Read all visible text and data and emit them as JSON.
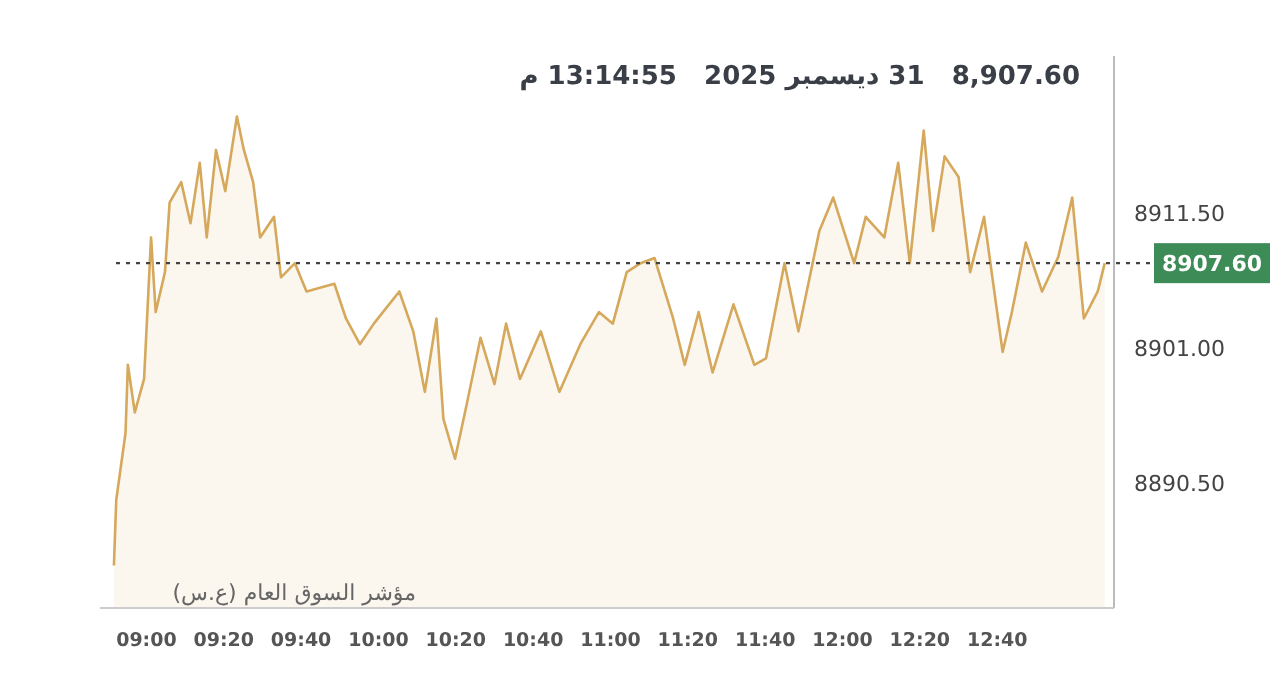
{
  "chart_data": {
    "type": "area",
    "title": "8,907.60   31 ديسمبر 2025   13:14:55 م",
    "annotations": [
      "مؤشر السوق العام (ع.س)"
    ],
    "x": [
      8.86,
      8.87,
      8.91,
      8.92,
      8.95,
      8.99,
      9.02,
      9.04,
      9.08,
      9.1,
      9.15,
      9.19,
      9.23,
      9.26,
      9.3,
      9.34,
      9.39,
      9.42,
      9.46,
      9.49,
      9.55,
      9.58,
      9.64,
      9.69,
      9.81,
      9.86,
      9.92,
      9.98,
      10.09,
      10.15,
      10.2,
      10.25,
      10.28,
      10.33,
      10.38,
      10.44,
      10.5,
      10.55,
      10.61,
      10.7,
      10.78,
      10.87,
      10.95,
      11.01,
      11.07,
      11.13,
      11.19,
      11.27,
      11.32,
      11.38,
      11.44,
      11.53,
      11.62,
      11.67,
      11.75,
      11.81,
      11.9,
      11.96,
      12.05,
      12.1,
      12.18,
      12.24,
      12.29,
      12.35,
      12.39,
      12.44,
      12.5,
      12.55,
      12.61,
      12.69,
      12.73,
      12.79,
      12.86,
      12.93,
      12.99,
      13.04,
      13.1,
      13.13
    ],
    "series": [
      {
        "color": "#d6a85c",
        "values": [
          8884.1,
          8889.2,
          8894.4,
          8899.7,
          8896.0,
          8898.6,
          8909.6,
          8903.8,
          8906.9,
          8912.3,
          8913.9,
          8910.7,
          8915.4,
          8909.6,
          8916.4,
          8913.2,
          8919.0,
          8916.4,
          8913.9,
          8909.6,
          8911.2,
          8906.5,
          8907.6,
          8905.4,
          8906.0,
          8903.3,
          8901.3,
          8902.9,
          8905.4,
          8902.3,
          8897.6,
          8903.3,
          8895.5,
          8892.4,
          8896.6,
          8901.8,
          8898.2,
          8902.9,
          8898.6,
          8902.3,
          8897.6,
          8901.3,
          8903.8,
          8902.9,
          8906.9,
          8907.6,
          8908.0,
          8903.3,
          8899.7,
          8903.8,
          8899.1,
          8904.4,
          8899.7,
          8900.2,
          8907.6,
          8902.3,
          8910.1,
          8912.7,
          8907.6,
          8911.2,
          8909.6,
          8915.4,
          8907.6,
          8917.9,
          8910.1,
          8915.9,
          8914.3,
          8906.9,
          8911.2,
          8900.7,
          8903.8,
          8909.2,
          8905.4,
          8908.1,
          8912.7,
          8903.3,
          8905.4,
          8907.6
        ]
      }
    ],
    "xlim": [
      8.8,
      13.17
    ],
    "xticks": [
      {
        "value": 9,
        "label": "09:00"
      },
      {
        "value": 9.3333,
        "label": "09:20"
      },
      {
        "value": 9.6667,
        "label": "09:40"
      },
      {
        "value": 10,
        "label": "10:00"
      },
      {
        "value": 10.3333,
        "label": "10:20"
      },
      {
        "value": 10.6667,
        "label": "10:40"
      },
      {
        "value": 11,
        "label": "11:00"
      },
      {
        "value": 11.3333,
        "label": "11:20"
      },
      {
        "value": 11.6667,
        "label": "11:40"
      },
      {
        "value": 12,
        "label": "12:00"
      },
      {
        "value": 12.3333,
        "label": "12:20"
      },
      {
        "value": 12.6667,
        "label": "12:40"
      }
    ],
    "ylim": [
      8880.8,
      8923.7
    ],
    "yticks": [
      {
        "value": 8890.5,
        "label": "8890.50"
      },
      {
        "value": 8901,
        "label": "8901.00"
      },
      {
        "value": 8911.5,
        "label": "8911.50"
      }
    ],
    "ref_lines": [
      {
        "axis": "y",
        "value": 8907.6,
        "label": "8907.60",
        "color": "#444444",
        "line_style": "dotted"
      }
    ],
    "grid": false
  }
}
